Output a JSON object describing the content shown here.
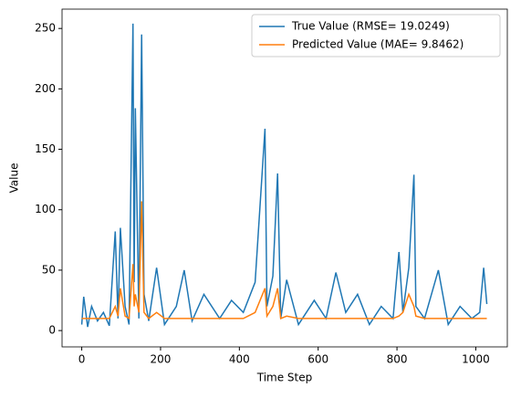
{
  "chart_data": {
    "type": "line",
    "xlabel": "Time Step",
    "ylabel": "Value",
    "x": [
      0,
      5,
      15,
      25,
      40,
      55,
      70,
      85,
      92,
      98,
      110,
      120,
      130,
      133,
      136,
      145,
      152,
      158,
      170,
      190,
      210,
      240,
      260,
      280,
      310,
      350,
      380,
      410,
      440,
      465,
      470,
      485,
      497,
      505,
      520,
      550,
      590,
      620,
      645,
      670,
      700,
      730,
      760,
      790,
      805,
      815,
      830,
      843,
      848,
      870,
      905,
      930,
      960,
      990,
      1010,
      1020,
      1028
    ],
    "series": [
      {
        "name": "True Value (RMSE= 19.0249)",
        "color": "#1f77b4",
        "values": [
          5,
          28,
          3,
          20,
          8,
          15,
          4,
          82,
          10,
          85,
          20,
          5,
          254,
          40,
          184,
          10,
          245,
          30,
          8,
          52,
          5,
          20,
          50,
          8,
          30,
          10,
          25,
          15,
          40,
          167,
          20,
          45,
          130,
          10,
          42,
          5,
          25,
          10,
          48,
          15,
          30,
          5,
          20,
          10,
          65,
          15,
          52,
          129,
          20,
          10,
          50,
          5,
          20,
          10,
          15,
          52,
          22
        ]
      },
      {
        "name": "Predicted Value (MAE= 9.8462)",
        "color": "#ff7f0e",
        "values": [
          10,
          10,
          10,
          10,
          10,
          10,
          10,
          20,
          12,
          35,
          12,
          10,
          55,
          20,
          30,
          15,
          107,
          15,
          10,
          15,
          10,
          10,
          10,
          10,
          10,
          10,
          10,
          10,
          15,
          35,
          12,
          20,
          35,
          10,
          12,
          10,
          10,
          10,
          10,
          10,
          10,
          10,
          10,
          10,
          12,
          15,
          30,
          20,
          12,
          10,
          10,
          10,
          10,
          10,
          10,
          10,
          10
        ]
      }
    ],
    "xlim": [
      -50,
      1080
    ],
    "xticks": [
      0,
      200,
      400,
      600,
      800,
      1000
    ],
    "ylim": [
      -13.5,
      266
    ],
    "yticks": [
      0,
      50,
      100,
      150,
      200,
      250
    ],
    "legend": "upper right"
  }
}
